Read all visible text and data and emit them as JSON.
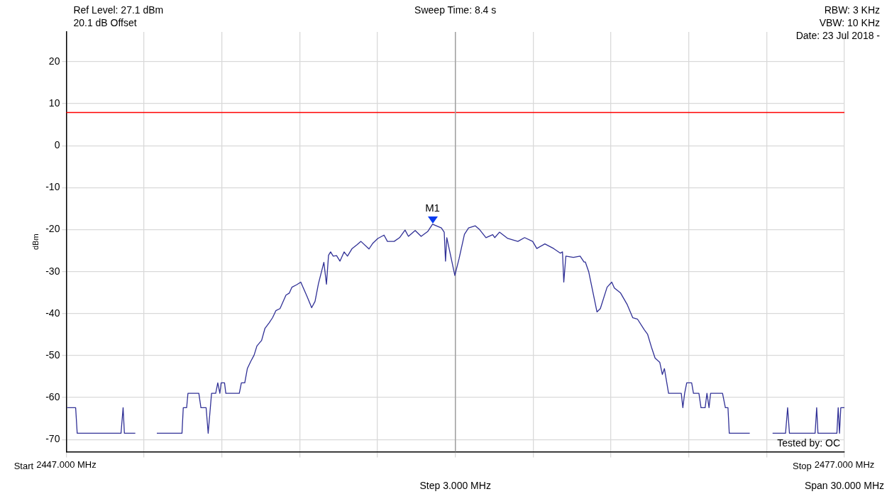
{
  "chart_data": {
    "type": "line",
    "title": "Sweep Time: 8.4 s",
    "ylabel": "dBm",
    "annotations": [
      "Ref Level: 27.1 dBm",
      "20.1 dB Offset",
      "RBW: 3 KHz",
      "VBW: 10 KHz",
      "Date: 23 Jul 2018 -",
      "Tested by: OC",
      "Step 3.000 MHz",
      "Span 30.000 MHz",
      "Start",
      "Stop",
      {
        "text": "M1",
        "x": 2461.12,
        "y": -18.7
      }
    ],
    "series": [
      {
        "color": "#303096",
        "x": [
          2447.03,
          2447.36,
          2447.42,
          2449.11,
          2449.19,
          2449.24,
          2449.66,
          2449.74,
          2450.41,
          2450.49,
          2451.46,
          2451.51,
          2451.64,
          2451.69,
          2452.11,
          2452.19,
          2452.39,
          2452.47,
          2452.6,
          2452.76,
          2452.84,
          2452.92,
          2452.97,
          2453.1,
          2453.15,
          2453.67,
          2453.75,
          2453.88,
          2453.98,
          2454.11,
          2454.24,
          2454.35,
          2454.53,
          2454.66,
          2454.82,
          2454.95,
          2455.08,
          2455.24,
          2455.47,
          2455.6,
          2455.7,
          2455.89,
          2456.04,
          2456.28,
          2456.46,
          2456.59,
          2456.72,
          2456.93,
          2457.03,
          2457.11,
          2457.19,
          2457.29,
          2457.42,
          2457.55,
          2457.71,
          2457.84,
          2458.02,
          2458.21,
          2458.36,
          2458.67,
          2458.81,
          2459.01,
          2459.25,
          2459.38,
          2459.64,
          2459.85,
          2460.06,
          2460.19,
          2460.45,
          2460.68,
          2460.94,
          2461.12,
          2461.46,
          2461.57,
          2461.62,
          2461.67,
          2461.98,
          2462.14,
          2462.35,
          2462.51,
          2462.77,
          2462.92,
          2463.18,
          2463.44,
          2463.52,
          2463.7,
          2464.02,
          2464.41,
          2464.67,
          2464.98,
          2465.14,
          2465.45,
          2465.79,
          2466.05,
          2466.13,
          2466.18,
          2466.26,
          2466.55,
          2466.81,
          2466.96,
          2467.01,
          2467.14,
          2467.46,
          2467.59,
          2467.85,
          2468.03,
          2468.13,
          2468.37,
          2468.63,
          2468.84,
          2469.02,
          2469.28,
          2469.41,
          2469.57,
          2469.7,
          2469.88,
          2469.98,
          2470.06,
          2470.22,
          2470.71,
          2470.77,
          2470.84,
          2470.92,
          2471.11,
          2471.18,
          2471.39,
          2471.47,
          2471.63,
          2471.7,
          2471.78,
          2471.84,
          2472.3,
          2472.41,
          2472.51,
          2472.56,
          2473.35,
          2473.4,
          2474.18,
          2474.23,
          2474.73,
          2474.81,
          2474.88,
          2475.87,
          2475.93,
          2475.98,
          2476.71,
          2476.76,
          2476.81,
          2476.86,
          2477.0
        ],
        "values": [
          -62.4,
          -62.4,
          -68.5,
          -68.5,
          -62.4,
          -68.5,
          -68.5,
          null,
          null,
          -68.5,
          -68.5,
          -62.4,
          -62.4,
          -59.0,
          -59.0,
          -62.4,
          -62.4,
          -68.5,
          -59.0,
          -59.0,
          -56.5,
          -59.0,
          -56.5,
          -56.5,
          -59.0,
          -59.0,
          -56.5,
          -56.5,
          -53.1,
          -51.4,
          -49.9,
          -47.7,
          -46.4,
          -43.5,
          -42.2,
          -41.0,
          -39.3,
          -38.8,
          -35.6,
          -35.1,
          -33.7,
          -33.1,
          -32.5,
          -35.9,
          -38.6,
          -37.1,
          -32.9,
          -27.8,
          -33.0,
          -26.1,
          -25.3,
          -26.3,
          -26.2,
          -27.5,
          -25.3,
          -26.3,
          -24.5,
          -23.6,
          -22.8,
          -24.6,
          -23.3,
          -22.1,
          -21.3,
          -22.8,
          -22.8,
          -21.9,
          -20.1,
          -21.6,
          -20.2,
          -21.6,
          -20.4,
          -18.7,
          -19.6,
          -20.6,
          -27.5,
          -21.9,
          -30.9,
          -27.0,
          -21.1,
          -19.6,
          -19.1,
          -19.9,
          -21.9,
          -21.2,
          -21.9,
          -20.6,
          -22.1,
          -22.8,
          -21.9,
          -22.8,
          -24.5,
          -23.4,
          -24.5,
          -25.6,
          -25.3,
          -32.5,
          -26.3,
          -26.6,
          -26.3,
          -27.7,
          -27.7,
          -30.0,
          -39.6,
          -38.8,
          -33.7,
          -32.5,
          -33.9,
          -35.1,
          -37.9,
          -41.0,
          -41.3,
          -43.8,
          -44.9,
          -48.2,
          -50.6,
          -51.6,
          -54.5,
          -53.1,
          -59.0,
          -59.0,
          -62.4,
          -59.0,
          -56.5,
          -56.5,
          -59.0,
          -59.0,
          -62.4,
          -62.4,
          -59.0,
          -62.4,
          -59.0,
          -59.0,
          -62.4,
          -62.4,
          -68.5,
          -68.5,
          null,
          null,
          -68.5,
          -68.5,
          -62.4,
          -68.5,
          -68.5,
          -62.4,
          -68.5,
          -68.5,
          -62.4,
          -68.5,
          -62.4,
          -62.4
        ]
      }
    ],
    "xlim": [
      2447,
      2477
    ],
    "xticks": [
      {
        "value": 2447,
        "label": "2447.000 MHz"
      },
      {
        "value": 2450,
        "label": null
      },
      {
        "value": 2453,
        "label": null
      },
      {
        "value": 2456,
        "label": null
      },
      {
        "value": 2459,
        "label": null
      },
      {
        "value": 2462,
        "label": null
      },
      {
        "value": 2465,
        "label": null
      },
      {
        "value": 2468,
        "label": null
      },
      {
        "value": 2471,
        "label": null
      },
      {
        "value": 2474,
        "label": null
      },
      {
        "value": 2477,
        "label": "2477.000 MHz"
      }
    ],
    "ylim": [
      -72.9,
      27.1
    ],
    "yticks": [
      -70,
      -60,
      -50,
      -40,
      -30,
      -20,
      -10,
      0,
      10,
      20
    ],
    "ref_lines": [
      {
        "axis": "y",
        "value": 7.9,
        "color": "#ff0000"
      },
      {
        "axis": "x",
        "value": 2462,
        "color": "#a0a0a0"
      }
    ],
    "grid": true,
    "legend": false,
    "marker": "none",
    "line_style": "solid"
  }
}
